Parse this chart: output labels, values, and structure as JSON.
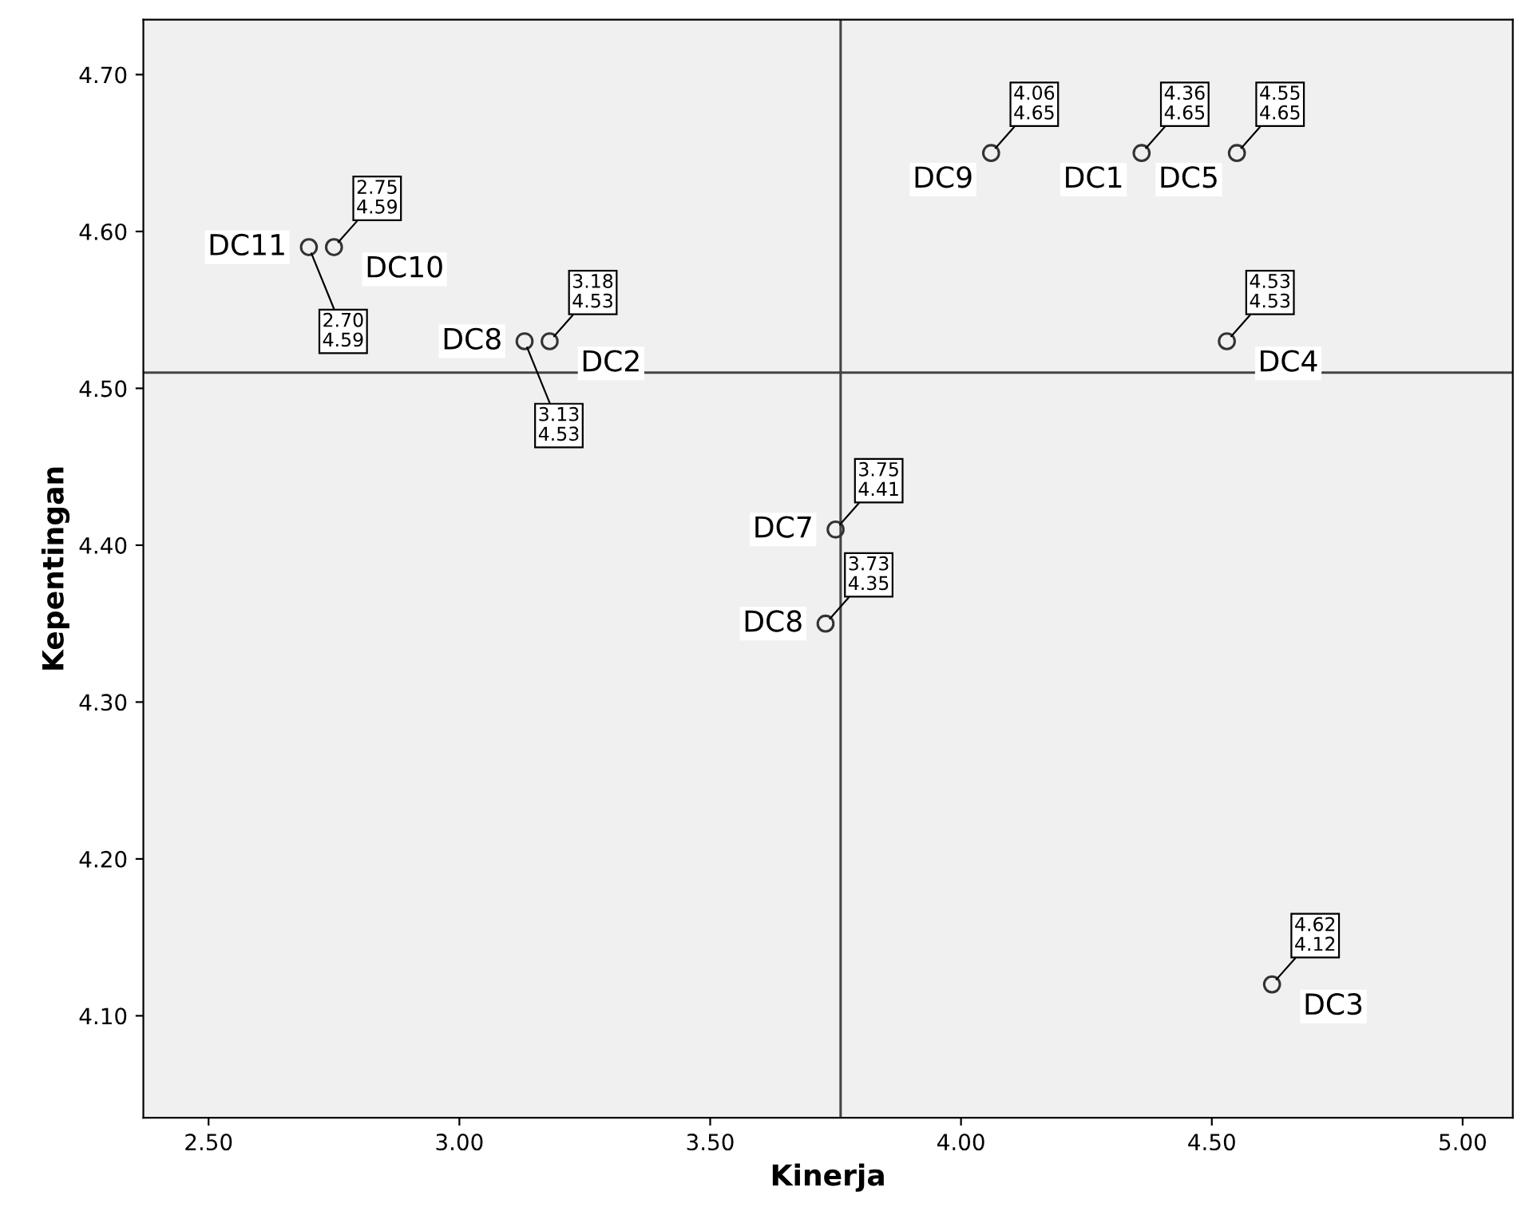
{
  "chart_data": {
    "type": "scatter",
    "xlabel": "Kinerja",
    "ylabel": "Kepentingan",
    "x": [
      2.7,
      2.75,
      3.13,
      3.18,
      3.75,
      3.73,
      4.06,
      4.36,
      4.55,
      4.53,
      4.62
    ],
    "values": [
      4.59,
      4.59,
      4.53,
      4.53,
      4.41,
      4.35,
      4.65,
      4.65,
      4.65,
      4.53,
      4.12
    ],
    "value_labels": [
      "2.70\n4.59",
      "2.75\n4.59",
      "3.13\n4.53",
      "3.18\n4.53",
      "3.75\n4.41",
      "3.73\n4.35",
      "4.06\n4.65",
      "4.36\n4.65",
      "4.55\n4.65",
      "4.53\n4.53",
      "4.62\n4.12"
    ],
    "annotations": [
      {
        "text": "DC11",
        "x": 2.7,
        "y": 4.59
      },
      {
        "text": "DC10",
        "x": 2.75,
        "y": 4.59
      },
      {
        "text": "DC8",
        "x": 3.13,
        "y": 4.53
      },
      {
        "text": "DC2",
        "x": 3.18,
        "y": 4.53
      },
      {
        "text": "DC7",
        "x": 3.75,
        "y": 4.41
      },
      {
        "text": "DC8",
        "x": 3.73,
        "y": 4.35
      },
      {
        "text": "DC9",
        "x": 4.06,
        "y": 4.65
      },
      {
        "text": "DC1",
        "x": 4.36,
        "y": 4.65
      },
      {
        "text": "DC5",
        "x": 4.55,
        "y": 4.65
      },
      {
        "text": "DC4",
        "x": 4.53,
        "y": 4.53
      },
      {
        "text": "DC3",
        "x": 4.62,
        "y": 4.12
      }
    ],
    "color": "#333333",
    "marker": "circle",
    "grid": false,
    "xlim": [
      2.37,
      5.1
    ],
    "ylim": [
      4.035,
      4.735
    ],
    "xticks": [
      {
        "value": 2.5,
        "label": "2.50"
      },
      {
        "value": 3.0,
        "label": "3.00"
      },
      {
        "value": 3.5,
        "label": "3.50"
      },
      {
        "value": 4.0,
        "label": "4.00"
      },
      {
        "value": 4.5,
        "label": "4.50"
      },
      {
        "value": 5.0,
        "label": "5.00"
      }
    ],
    "yticks": [
      {
        "value": 4.1,
        "label": "4.10"
      },
      {
        "value": 4.2,
        "label": "4.20"
      },
      {
        "value": 4.3,
        "label": "4.30"
      },
      {
        "value": 4.4,
        "label": "4.40"
      },
      {
        "value": 4.5,
        "label": "4.50"
      },
      {
        "value": 4.6,
        "label": "4.60"
      },
      {
        "value": 4.7,
        "label": "4.70"
      }
    ],
    "ref_lines": [
      {
        "axis": "x",
        "value": 3.76,
        "label": null,
        "color": "#444444"
      },
      {
        "axis": "y",
        "value": 4.51,
        "label": null,
        "color": "#444444"
      }
    ]
  }
}
